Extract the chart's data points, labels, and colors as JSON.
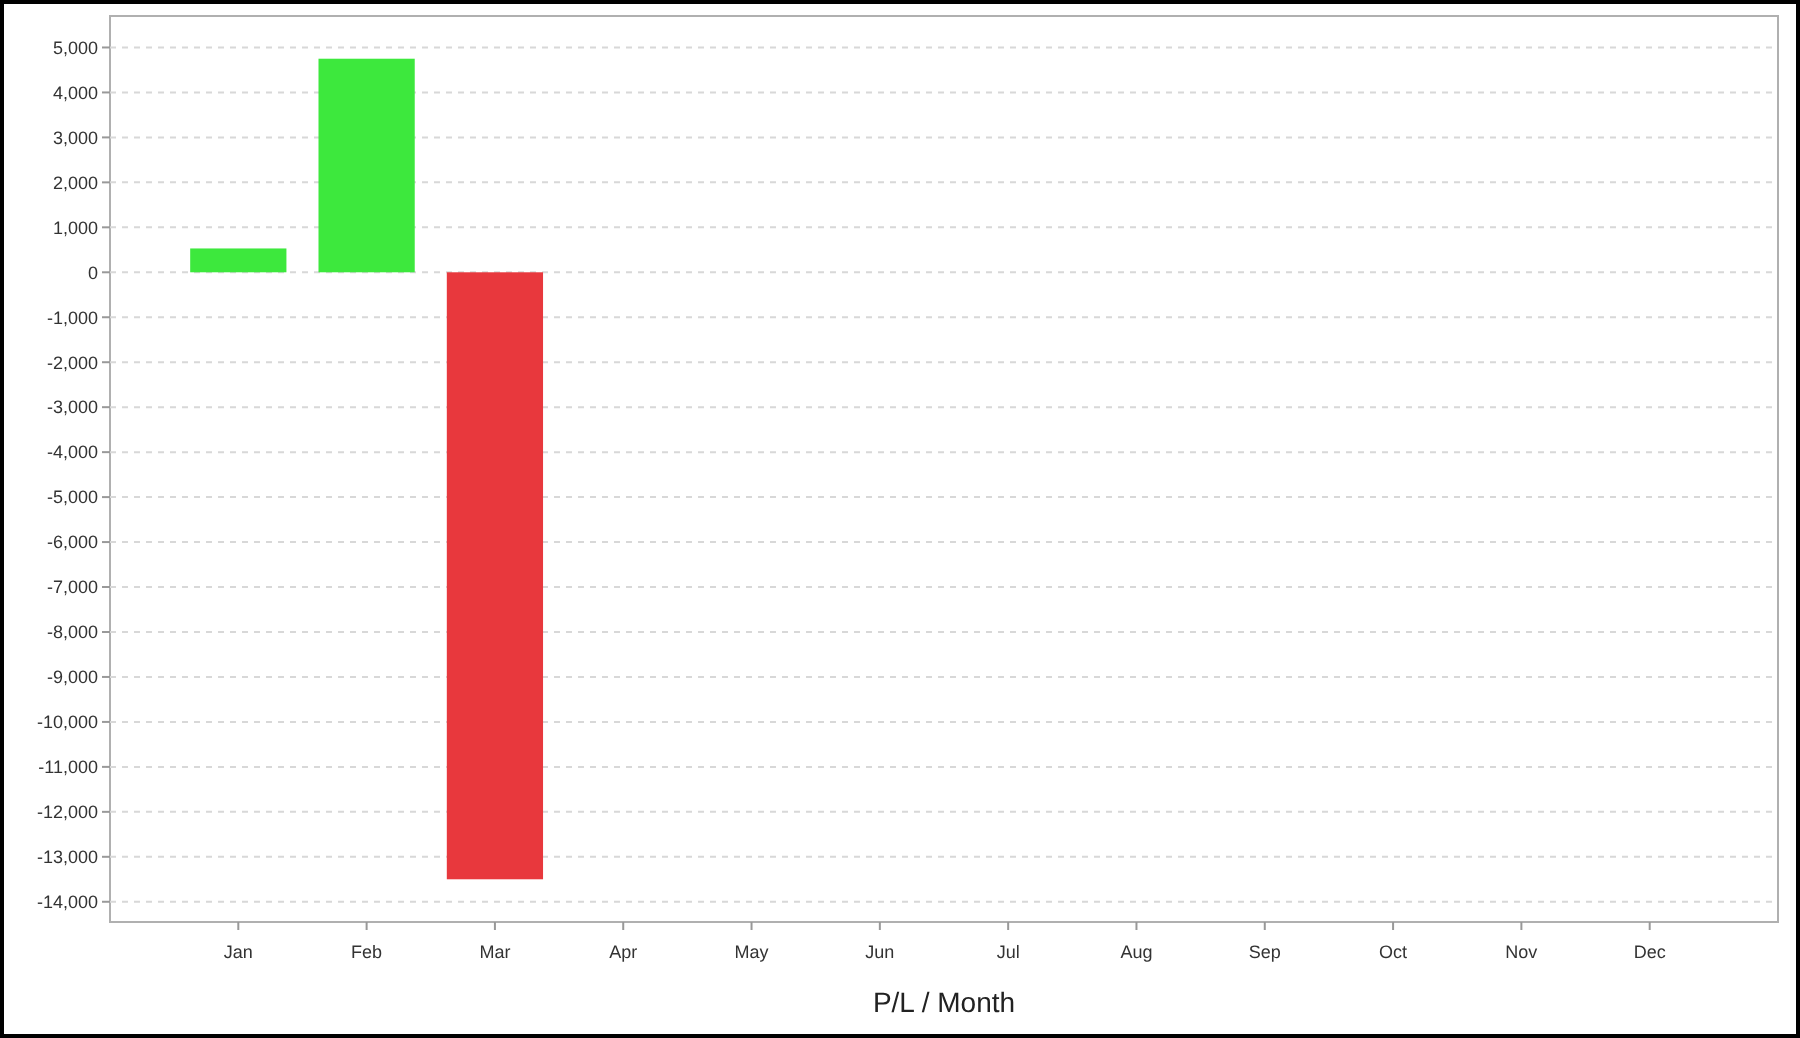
{
  "chart_data": {
    "type": "bar",
    "xlabel": "P/L / Month",
    "categories": [
      "Jan",
      "Feb",
      "Mar",
      "Apr",
      "May",
      "Jun",
      "Jul",
      "Aug",
      "Sep",
      "Oct",
      "Nov",
      "Dec"
    ],
    "values": [
      530,
      4750,
      -13500,
      null,
      null,
      null,
      null,
      null,
      null,
      null,
      null,
      null
    ],
    "colors": [
      "#3de83d",
      "#3de83d",
      "#e8383d",
      null,
      null,
      null,
      null,
      null,
      null,
      null,
      null,
      null
    ],
    "ylim": [
      -14450,
      5700
    ],
    "yticks": [
      {
        "value": 5000,
        "label": "5,000"
      },
      {
        "value": 4000,
        "label": "4,000"
      },
      {
        "value": 3000,
        "label": "3,000"
      },
      {
        "value": 2000,
        "label": "2,000"
      },
      {
        "value": 1000,
        "label": "1,000"
      },
      0,
      {
        "value": -1000,
        "label": "-1,000"
      },
      {
        "value": -2000,
        "label": "-2,000"
      },
      {
        "value": -3000,
        "label": "-3,000"
      },
      {
        "value": -4000,
        "label": "-4,000"
      },
      {
        "value": -5000,
        "label": "-5,000"
      },
      {
        "value": -6000,
        "label": "-6,000"
      },
      {
        "value": -7000,
        "label": "-7,000"
      },
      {
        "value": -8000,
        "label": "-8,000"
      },
      {
        "value": -9000,
        "label": "-9,000"
      },
      {
        "value": -10000,
        "label": "-10,000"
      },
      {
        "value": -11000,
        "label": "-11,000"
      },
      {
        "value": -12000,
        "label": "-12,000"
      },
      {
        "value": -13000,
        "label": "-13,000"
      },
      {
        "value": -14000,
        "label": "-14,000"
      }
    ],
    "grid": "y"
  }
}
